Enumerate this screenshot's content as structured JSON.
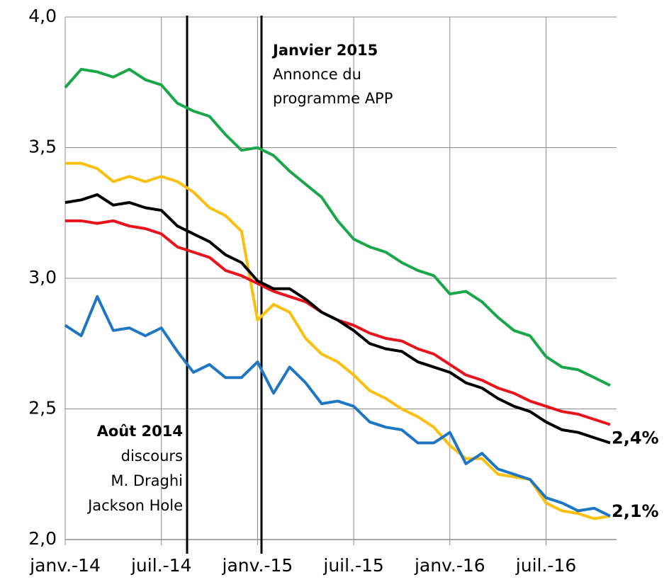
{
  "chart_data": {
    "type": "line",
    "categories": [
      "janv.-14",
      null,
      null,
      null,
      null,
      null,
      "juil.-14",
      null,
      null,
      null,
      null,
      null,
      "janv.-15",
      null,
      null,
      null,
      null,
      null,
      "juil.-15",
      null,
      null,
      null,
      null,
      null,
      "janv.-16",
      null,
      null,
      null,
      null,
      null,
      "juil.-16",
      null,
      null,
      null,
      null
    ],
    "series": [
      {
        "color": "#1aa64a",
        "values": [
          3.73,
          3.8,
          3.79,
          3.77,
          3.8,
          3.76,
          3.74,
          3.67,
          3.64,
          3.62,
          3.55,
          3.49,
          3.5,
          3.47,
          3.41,
          3.36,
          3.31,
          3.22,
          3.15,
          3.12,
          3.1,
          3.06,
          3.03,
          3.01,
          2.94,
          2.95,
          2.91,
          2.85,
          2.8,
          2.78,
          2.7,
          2.66,
          2.65,
          2.62,
          2.59
        ]
      },
      {
        "color": "#fbbf0f",
        "values": [
          3.44,
          3.44,
          3.42,
          3.37,
          3.39,
          3.37,
          3.39,
          3.37,
          3.33,
          3.27,
          3.24,
          3.18,
          2.84,
          2.9,
          2.87,
          2.77,
          2.71,
          2.68,
          2.63,
          2.57,
          2.54,
          2.5,
          2.47,
          2.43,
          2.36,
          2.31,
          2.31,
          2.25,
          2.24,
          2.23,
          2.14,
          2.11,
          2.1,
          2.08,
          2.09
        ]
      },
      {
        "color": "#e8141b",
        "values": [
          3.22,
          3.22,
          3.21,
          3.22,
          3.2,
          3.19,
          3.17,
          3.12,
          3.1,
          3.08,
          3.03,
          3.01,
          2.98,
          2.95,
          2.93,
          2.91,
          2.87,
          2.84,
          2.82,
          2.79,
          2.77,
          2.76,
          2.73,
          2.71,
          2.67,
          2.63,
          2.61,
          2.58,
          2.56,
          2.53,
          2.51,
          2.49,
          2.48,
          2.46,
          2.44
        ]
      },
      {
        "color": "#000000",
        "values": [
          3.29,
          3.3,
          3.32,
          3.28,
          3.29,
          3.27,
          3.26,
          3.2,
          3.17,
          3.14,
          3.09,
          3.06,
          2.99,
          2.96,
          2.96,
          2.92,
          2.87,
          2.84,
          2.8,
          2.75,
          2.73,
          2.72,
          2.68,
          2.66,
          2.64,
          2.6,
          2.58,
          2.54,
          2.51,
          2.49,
          2.45,
          2.42,
          2.41,
          2.39,
          2.37
        ],
        "value_labels": [
          null,
          null,
          null,
          null,
          null,
          null,
          null,
          null,
          null,
          null,
          null,
          null,
          null,
          null,
          null,
          null,
          null,
          null,
          null,
          null,
          null,
          null,
          null,
          null,
          null,
          null,
          null,
          null,
          null,
          null,
          null,
          null,
          null,
          null,
          "2,4%"
        ]
      },
      {
        "color": "#1f77c4",
        "values": [
          2.82,
          2.78,
          2.93,
          2.8,
          2.81,
          2.78,
          2.81,
          2.72,
          2.64,
          2.67,
          2.62,
          2.62,
          2.68,
          2.56,
          2.66,
          2.6,
          2.52,
          2.53,
          2.51,
          2.45,
          2.43,
          2.42,
          2.37,
          2.37,
          2.41,
          2.29,
          2.33,
          2.27,
          2.25,
          2.23,
          2.16,
          2.14,
          2.11,
          2.12,
          2.09
        ],
        "value_labels": [
          null,
          null,
          null,
          null,
          null,
          null,
          null,
          null,
          null,
          null,
          null,
          null,
          null,
          null,
          null,
          null,
          null,
          null,
          null,
          null,
          null,
          null,
          null,
          null,
          null,
          null,
          null,
          null,
          null,
          null,
          null,
          null,
          null,
          null,
          "2,1%"
        ]
      }
    ],
    "ylim": [
      2,
      4
    ],
    "yticks": [
      {
        "value": 2,
        "label": "2,0"
      },
      {
        "value": 2.5,
        "label": "2,5"
      },
      {
        "value": 3,
        "label": "3,0"
      },
      {
        "value": 3.5,
        "label": "3,5"
      },
      {
        "value": 4,
        "label": "4,0"
      }
    ],
    "grid": true,
    "annotations": [
      {
        "title": "Août 2014",
        "lines": [
          "discours",
          "M. Draghi",
          "Jackson Hole"
        ]
      },
      {
        "title": "Janvier 2015",
        "lines": [
          "Annonce du",
          "programme APP"
        ]
      }
    ]
  }
}
